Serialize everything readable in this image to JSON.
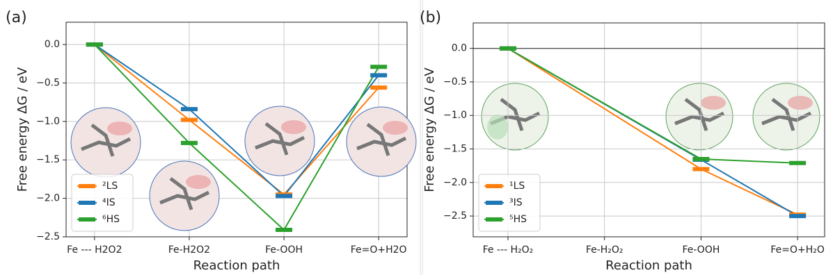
{
  "chart_data": [
    {
      "type": "line",
      "panel_label": "(a)",
      "x_label": "Reaction path",
      "y_label": "Free energy ΔG / eV",
      "categories": [
        "Fe --- H2O2",
        "Fe-H2O2",
        "Fe-OOH",
        "Fe=O+H2O"
      ],
      "ylim": [
        -2.5,
        0.29
      ],
      "yticks": [
        {
          "value": -2.5,
          "label": "−2.5"
        },
        {
          "value": -2,
          "label": "−2.0"
        },
        {
          "value": -1.5,
          "label": "−1.5"
        },
        {
          "value": -1,
          "label": "−1.0"
        },
        {
          "value": -0.5,
          "label": "−0.5"
        },
        {
          "value": 0,
          "label": "0.0"
        }
      ],
      "grid": true,
      "legend": "lower left",
      "series": [
        {
          "name": "²LS",
          "color": "#ff7f0e",
          "values": [
            0,
            -0.98,
            -1.95,
            -0.56
          ]
        },
        {
          "name": "⁴IS",
          "color": "#1f77b4",
          "values": [
            0,
            -0.84,
            -1.97,
            -0.4
          ]
        },
        {
          "name": "⁶HS",
          "color": "#2ca02c",
          "values": [
            0,
            -1.28,
            -2.41,
            -0.29
          ]
        }
      ]
    },
    {
      "type": "line",
      "panel_label": "(b)",
      "x_label": "Reaction path",
      "y_label": "Free energy ΔG / eV",
      "x": [
        0,
        2,
        3
      ],
      "xlim": [
        -0.36,
        3.28
      ],
      "xticks": [
        {
          "value": 0,
          "label": "Fe --- H₂O₂"
        },
        {
          "value": 1,
          "label": "Fe-H₂O₂"
        },
        {
          "value": 2,
          "label": "Fe-OOH"
        },
        {
          "value": 3,
          "label": "Fe=O+H₂O"
        }
      ],
      "ylim": [
        -2.81,
        0.38
      ],
      "yticks": [
        {
          "value": -2.5,
          "label": "−2.5"
        },
        {
          "value": -2,
          "label": "−2.0"
        },
        {
          "value": -1.5,
          "label": "−1.5"
        },
        {
          "value": -1,
          "label": "−1.0"
        },
        {
          "value": -0.5,
          "label": "−0.5"
        },
        {
          "value": 0,
          "label": "0.0"
        }
      ],
      "grid": true,
      "legend": "lower left",
      "reference_line": 0,
      "series": [
        {
          "name": "¹LS",
          "color": "#ff7f0e",
          "values": [
            0,
            -1.8,
            -2.48
          ]
        },
        {
          "name": "³IS",
          "color": "#1f77b4",
          "values": [
            0,
            -1.66,
            -2.5
          ]
        },
        {
          "name": "⁵HS",
          "color": "#2ca02c",
          "values": [
            0,
            -1.65,
            -1.71
          ]
        }
      ]
    }
  ]
}
